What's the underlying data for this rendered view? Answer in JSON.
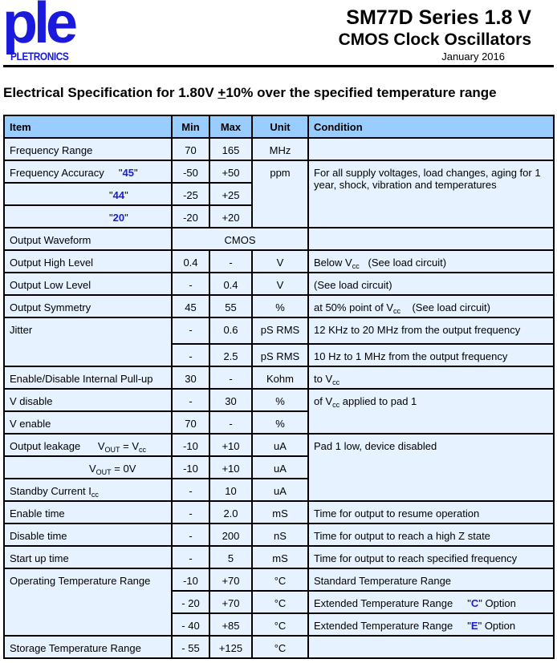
{
  "header": {
    "logo_text": "ple",
    "logo_company": "PLETRONICS",
    "title": "SM77D Series  1.8 V",
    "subtitle": "CMOS Clock Oscillators",
    "date": "January 2016"
  },
  "heading": {
    "pre": "Electrical Specification for 1.80V ",
    "pm": "+",
    "post": "10% over the specified temperature range"
  },
  "columns": [
    "Item",
    "Min",
    "Max",
    "Unit",
    "Condition"
  ],
  "rows": {
    "freq_range": {
      "item": "Frequency Range",
      "min": "70",
      "max": "165",
      "unit": "MHz"
    },
    "acc45": {
      "item": "Frequency Accuracy",
      "code": "45",
      "min": "-50",
      "max": "+50",
      "unit": "ppm",
      "condition": "For all supply voltages, load changes, aging for 1 year, shock, vibration and temperatures"
    },
    "acc44": {
      "code": "44",
      "min": "-25",
      "max": "+25"
    },
    "acc20": {
      "code": "20",
      "min": "-20",
      "max": "+20"
    },
    "waveform": {
      "item": "Output Waveform",
      "value": "CMOS"
    },
    "high": {
      "item": "Output High Level",
      "min": "0.4",
      "max": "-",
      "unit": "V",
      "cond_pre": "Below V",
      "cond_sub": "cc",
      "cond_post": "   (See load circuit)"
    },
    "low": {
      "item": "Output Low Level",
      "min": "-",
      "max": "0.4",
      "unit": "V",
      "condition": "(See load circuit)"
    },
    "symmetry": {
      "item": "Output Symmetry",
      "min": "45",
      "max": "55",
      "unit": "%",
      "cond_pre": "at 50% point of V",
      "cond_sub": "cc",
      "cond_post": "    (See load circuit)"
    },
    "jitter1": {
      "item": "Jitter",
      "min": "-",
      "max": "0.6",
      "unit": "pS RMS",
      "condition": "12 KHz to 20 MHz from the output frequency"
    },
    "jitter2": {
      "min": "-",
      "max": "2.5",
      "unit": "pS RMS",
      "condition": "10 Hz to 1 MHz from the output frequency"
    },
    "pullup": {
      "item": "Enable/Disable Internal Pull-up",
      "min": "30",
      "max": "-",
      "unit": "Kohm",
      "cond_pre": "to V",
      "cond_sub": "cc"
    },
    "vdisable": {
      "item": "V disable",
      "min": "-",
      "max": "30",
      "unit": "%",
      "cond_pre": "of V",
      "cond_sub": "cc",
      "cond_post": " applied to pad 1"
    },
    "venable": {
      "item": "V enable",
      "min": "70",
      "max": "-",
      "unit": "%"
    },
    "leak1": {
      "item": "Output leakage",
      "v": "V",
      "vsub": "OUT",
      "eq": " = V",
      "eqsub": "cc",
      "min": "-10",
      "max": "+10",
      "unit": "uA",
      "condition": "Pad 1 low, device disabled"
    },
    "leak2": {
      "v": "V",
      "vsub": "OUT",
      "eq": " = 0V",
      "min": "-10",
      "max": "+10",
      "unit": "uA"
    },
    "standby": {
      "item": "Standby Current I",
      "sub": "cc",
      "min": "-",
      "max": "10",
      "unit": "uA"
    },
    "enable": {
      "item": "Enable time",
      "min": "-",
      "max": "2.0",
      "unit": "mS",
      "condition": "Time for output to resume operation"
    },
    "disable": {
      "item": "Disable time",
      "min": "-",
      "max": "200",
      "unit": "nS",
      "condition": "Time for output to reach a high Z state"
    },
    "startup": {
      "item": "Start up time",
      "min": "-",
      "max": "5",
      "unit": "mS",
      "condition": "Time for output to reach specified frequency"
    },
    "op1": {
      "item": "Operating Temperature Range",
      "min": "-10",
      "max": "+70",
      "unit": "°C",
      "condition": "Standard Temperature Range"
    },
    "op2": {
      "min": "- 20",
      "max": "+70",
      "unit": "°C",
      "condition": "Extended Temperature Range",
      "code": "C",
      "suffix": " Option"
    },
    "op3": {
      "min": "- 40",
      "max": "+85",
      "unit": "°C",
      "condition": "Extended Temperature Range",
      "code": "E",
      "suffix": " Option"
    },
    "storage": {
      "item": "Storage Temperature Range",
      "min": "- 55",
      "max": "+125",
      "unit": "°C"
    }
  },
  "colors": {
    "header_bg": "#99ccff",
    "cell_bg": "#e6f2ff",
    "brand_blue": "#1a1adc"
  }
}
